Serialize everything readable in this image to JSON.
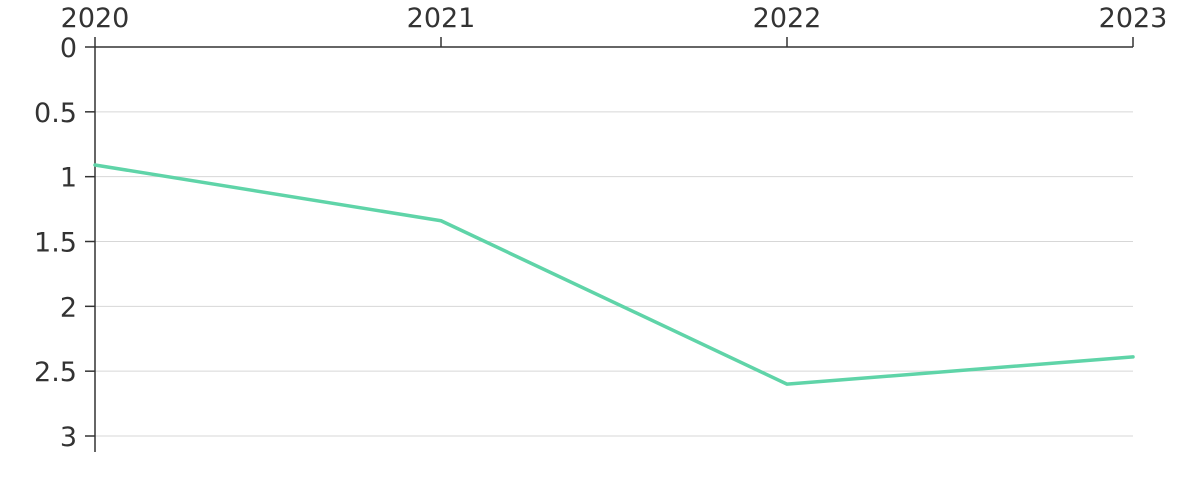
{
  "chart_data": {
    "type": "line",
    "title": "",
    "xlabel": "",
    "ylabel": "",
    "x": [
      "2020",
      "2021",
      "2022",
      "2023"
    ],
    "x_tick_labels": [
      "2020",
      "2021",
      "2022",
      "2023"
    ],
    "x_axis_position": "top",
    "ylim": [
      0,
      3
    ],
    "y_inverted": true,
    "y_ticks": [
      0,
      0.5,
      1,
      1.5,
      2,
      2.5,
      3
    ],
    "y_tick_labels": [
      "0",
      "0.5",
      "1",
      "1.5",
      "2",
      "2.5",
      "3"
    ],
    "grid": true,
    "series": [
      {
        "color": "#5fd4a8",
        "values": [
          0.91,
          1.34,
          2.6,
          2.39
        ]
      }
    ]
  }
}
